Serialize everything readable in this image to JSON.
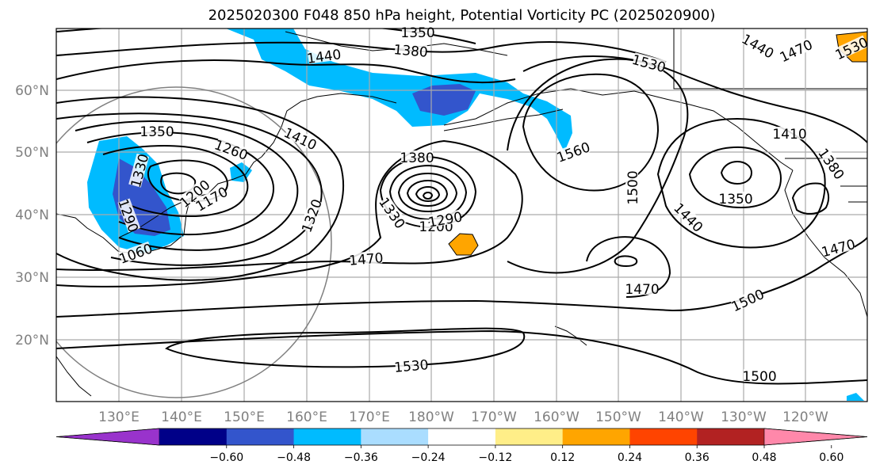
{
  "title": "2025020300 F048 850 hPa height, Potential Vorticity PC (2025020900)",
  "lon_labels": [
    "130°E",
    "140°E",
    "150°E",
    "160°E",
    "170°E",
    "180°W",
    "170°W",
    "160°W",
    "150°W",
    "140°W",
    "130°W",
    "120°W"
  ],
  "lat_labels": [
    "60°N",
    "50°N",
    "40°N",
    "30°N",
    "20°N"
  ],
  "contour_labels": [
    "1350",
    "1380",
    "1440",
    "1440",
    "1470",
    "1530",
    "1350",
    "1260",
    "1410",
    "1530",
    "1330",
    "1200",
    "1170",
    "1320",
    "1380",
    "1560",
    "1500",
    "1410",
    "1380",
    "1290",
    "1060",
    "1330",
    "1200",
    "1290",
    "1470",
    "1350",
    "1440",
    "1470",
    "1470",
    "1500",
    "1530",
    "1500"
  ],
  "colorbar": {
    "ticks": [
      "−0.60",
      "−0.48",
      "−0.36",
      "−0.24",
      "−0.12",
      "0.12",
      "0.24",
      "0.36",
      "0.48",
      "0.60"
    ],
    "colors": [
      "#9933cc",
      "#000088",
      "#3355cc",
      "#00bbff",
      "#aaddff",
      "#ffffff",
      "#ffee88",
      "#ffa500",
      "#ff4400",
      "#b22222",
      "#ff88aa"
    ]
  },
  "colors": {
    "pv_light": "#00bbff",
    "pv_mid": "#3355cc",
    "pv_pos": "#ffa500",
    "contour": "#000000",
    "grid": "#aaaaaa"
  }
}
